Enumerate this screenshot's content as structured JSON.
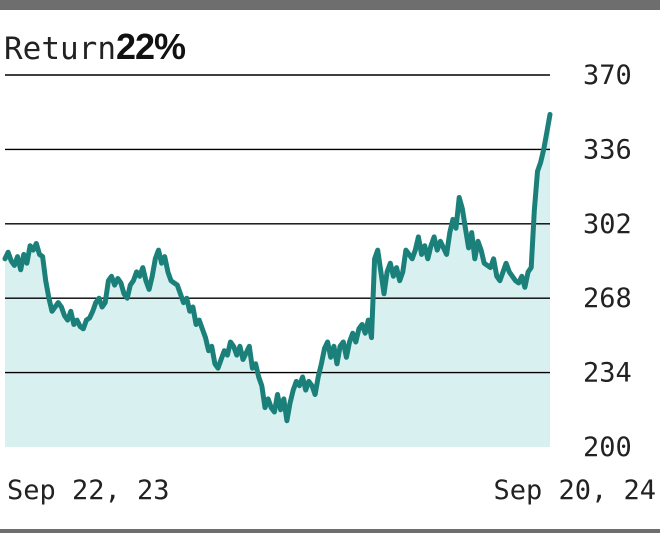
{
  "header": {
    "label": "Return",
    "value": "22%"
  },
  "chart_data": {
    "type": "area",
    "title": "Return 22%",
    "xlabel": "",
    "ylabel": "",
    "x_tick_labels": [
      "Sep 22, 23",
      "Sep 20, 24"
    ],
    "y_ticks": [
      200,
      234,
      268,
      302,
      336,
      370
    ],
    "ylim": [
      200,
      370
    ],
    "grid": "horizontal",
    "y_axis_position": "right",
    "colors": {
      "line": "#1a8079",
      "fill": "#d8f0f0",
      "grid": "#000000"
    },
    "series": [
      {
        "values": [
          286,
          289,
          285,
          283,
          287,
          281,
          288,
          284,
          292,
          290,
          293,
          288,
          287,
          276,
          268,
          262,
          264,
          266,
          264,
          260,
          258,
          262,
          256,
          258,
          255,
          254,
          258,
          259,
          262,
          266,
          268,
          264,
          266,
          276,
          278,
          274,
          277,
          275,
          270,
          268,
          274,
          276,
          280,
          278,
          282,
          276,
          272,
          278,
          286,
          290,
          284,
          287,
          280,
          276,
          275,
          274,
          270,
          266,
          268,
          262,
          264,
          256,
          258,
          254,
          250,
          244,
          246,
          238,
          236,
          240,
          244,
          242,
          248,
          246,
          242,
          246,
          240,
          243,
          246,
          236,
          238,
          232,
          228,
          218,
          222,
          218,
          216,
          224,
          217,
          222,
          212,
          220,
          226,
          230,
          228,
          232,
          226,
          230,
          228,
          224,
          232,
          238,
          245,
          248,
          241,
          246,
          238,
          246,
          248,
          241,
          248,
          252,
          248,
          254,
          256,
          252,
          258,
          250,
          286,
          290,
          280,
          270,
          280,
          284,
          278,
          282,
          276,
          280,
          290,
          288,
          286,
          290,
          296,
          288,
          292,
          286,
          292,
          296,
          290,
          294,
          291,
          288,
          298,
          304,
          300,
          314,
          309,
          300,
          291,
          298,
          286,
          294,
          290,
          284,
          283,
          282,
          286,
          278,
          276,
          280,
          284,
          280,
          278,
          276,
          275,
          278,
          273,
          280,
          282,
          308,
          326,
          330,
          336,
          344,
          352
        ]
      }
    ]
  }
}
